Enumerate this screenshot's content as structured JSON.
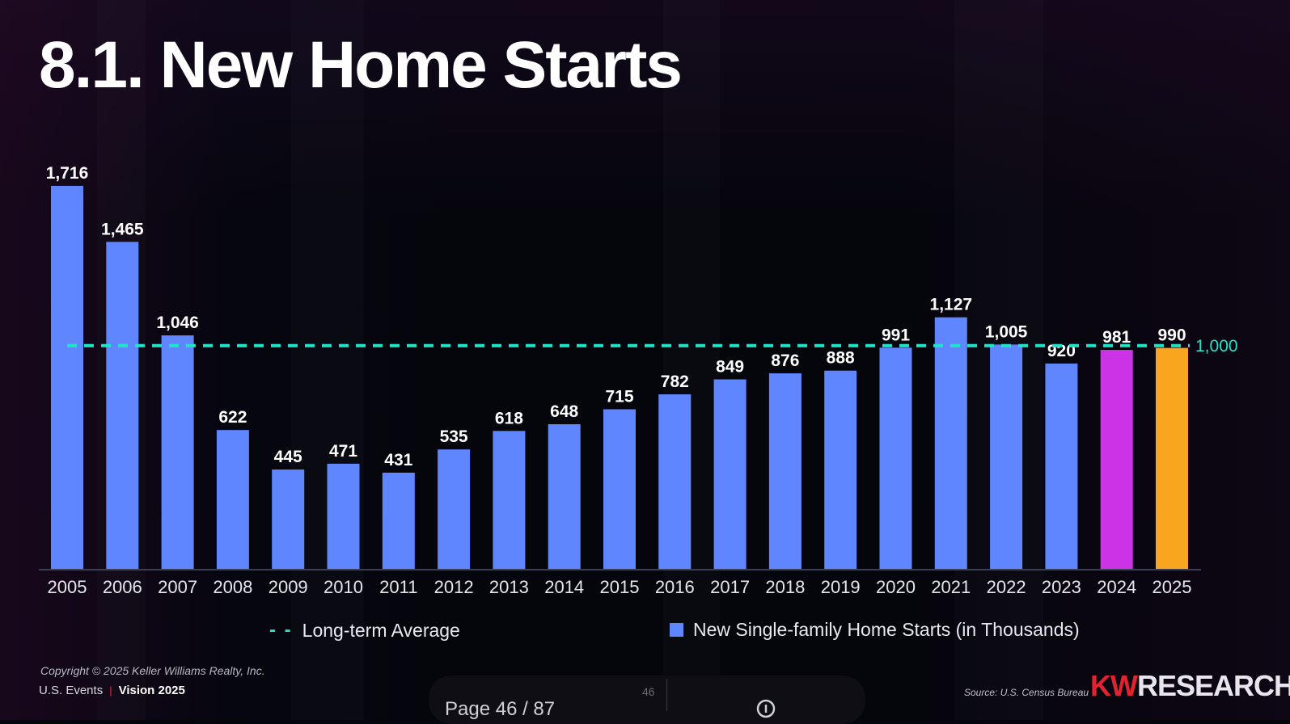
{
  "title": "8.1. New Home Starts",
  "chart_data": {
    "type": "bar",
    "categories": [
      "2005",
      "2006",
      "2007",
      "2008",
      "2009",
      "2010",
      "2011",
      "2012",
      "2013",
      "2014",
      "2015",
      "2016",
      "2017",
      "2018",
      "2019",
      "2020",
      "2021",
      "2022",
      "2023",
      "2024",
      "2025"
    ],
    "series": [
      {
        "name": "New Single-family Home Starts (in Thousands)",
        "values": [
          1716,
          1465,
          1046,
          622,
          445,
          471,
          431,
          535,
          618,
          648,
          715,
          782,
          849,
          876,
          888,
          991,
          1127,
          1005,
          920,
          981,
          990
        ],
        "data_labels": [
          "1,716",
          "1,465",
          "1,046",
          "622",
          "445",
          "471",
          "431",
          "535",
          "618",
          "648",
          "715",
          "782",
          "849",
          "876",
          "888",
          "991",
          "1,127",
          "1,005",
          "920",
          "981",
          "990"
        ]
      }
    ],
    "reference_line": {
      "name": "Long-term Average",
      "value": 1000,
      "label": "1,000"
    },
    "highlight_colors": {
      "2024": "#cc33e6",
      "2025": "#f9a51f"
    },
    "bar_color": "#5f86ff",
    "average_color": "#22e3c8",
    "legend": [
      "Long-term Average",
      "New Single-family Home Starts (in Thousands)"
    ],
    "grid": false
  },
  "legend": {
    "average_label": "Long-term Average",
    "average_symbol": "- -",
    "bars_label": "New Single-family Home Starts (in Thousands)"
  },
  "footer": {
    "copyright": "Copyright © 2025 Keller Williams Realty, Inc.",
    "events": "U.S. Events",
    "separator": "|",
    "vision": "Vision 2025",
    "source": "Source: U.S. Census Bureau",
    "brand_kw": "KW",
    "brand_research": "RESEARCH"
  },
  "viewer": {
    "page_number": "46",
    "page_text": "Page   46   /   87"
  }
}
